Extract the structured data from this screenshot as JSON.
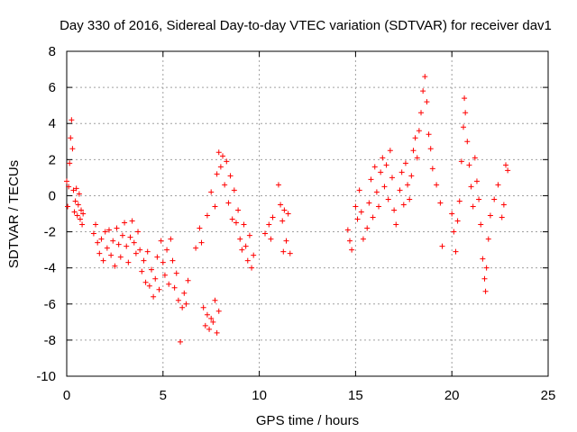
{
  "colors": {
    "series": "#ff0000",
    "grid": "#a0a0a0",
    "axis": "#000000",
    "background": "#ffffff"
  },
  "chart_data": {
    "type": "scatter",
    "title": "Day 330 of 2016, Sidereal Day-to-day VTEC variation (SDTVAR) for receiver dav1",
    "xlabel": "GPS time / hours",
    "ylabel": "SDTVAR / TECUs",
    "xlim": [
      0,
      25
    ],
    "ylim": [
      -10,
      8
    ],
    "xticks": [
      0,
      5,
      10,
      15,
      20,
      25
    ],
    "xtick_labels": [
      "0",
      "5",
      "10",
      "15",
      "20",
      "25"
    ],
    "yticks": [
      -10,
      -8,
      -6,
      -4,
      -2,
      0,
      2,
      4,
      6,
      8
    ],
    "ytick_labels": [
      "-10",
      "-8",
      "-6",
      "-4",
      "-2",
      "0",
      "2",
      "4",
      "6",
      "8"
    ],
    "grid": true,
    "marker": "+",
    "series": [
      {
        "name": "SDTVAR",
        "points": [
          [
            0.0,
            0.8
          ],
          [
            0.05,
            -0.6
          ],
          [
            0.1,
            0.5
          ],
          [
            0.15,
            1.8
          ],
          [
            0.2,
            3.2
          ],
          [
            0.25,
            4.2
          ],
          [
            0.3,
            2.6
          ],
          [
            0.35,
            0.3
          ],
          [
            0.4,
            -0.9
          ],
          [
            0.45,
            -0.3
          ],
          [
            0.5,
            0.4
          ],
          [
            0.55,
            -1.1
          ],
          [
            0.6,
            -0.5
          ],
          [
            0.65,
            0.1
          ],
          [
            0.7,
            -1.3
          ],
          [
            0.75,
            -0.8
          ],
          [
            0.8,
            -1.6
          ],
          [
            0.85,
            -1.0
          ],
          [
            1.4,
            -2.1
          ],
          [
            1.5,
            -1.6
          ],
          [
            1.6,
            -2.6
          ],
          [
            1.7,
            -3.2
          ],
          [
            1.8,
            -2.4
          ],
          [
            1.9,
            -3.6
          ],
          [
            2.0,
            -2.0
          ],
          [
            2.1,
            -2.9
          ],
          [
            2.2,
            -1.9
          ],
          [
            2.3,
            -3.3
          ],
          [
            2.4,
            -2.5
          ],
          [
            2.5,
            -3.9
          ],
          [
            2.6,
            -1.8
          ],
          [
            2.7,
            -2.7
          ],
          [
            2.8,
            -3.4
          ],
          [
            2.9,
            -2.2
          ],
          [
            3.0,
            -1.5
          ],
          [
            3.1,
            -2.8
          ],
          [
            3.2,
            -3.7
          ],
          [
            3.3,
            -2.3
          ],
          [
            3.4,
            -1.4
          ],
          [
            3.5,
            -2.6
          ],
          [
            3.6,
            -3.2
          ],
          [
            3.7,
            -2.0
          ],
          [
            3.8,
            -3.0
          ],
          [
            3.9,
            -4.2
          ],
          [
            4.0,
            -3.6
          ],
          [
            4.1,
            -4.8
          ],
          [
            4.2,
            -3.1
          ],
          [
            4.3,
            -5.0
          ],
          [
            4.4,
            -4.1
          ],
          [
            4.5,
            -5.6
          ],
          [
            4.6,
            -4.6
          ],
          [
            4.7,
            -3.4
          ],
          [
            4.8,
            -5.2
          ],
          [
            4.9,
            -2.5
          ],
          [
            5.0,
            -3.7
          ],
          [
            5.1,
            -4.4
          ],
          [
            5.2,
            -3.0
          ],
          [
            5.3,
            -4.9
          ],
          [
            5.4,
            -2.4
          ],
          [
            5.5,
            -3.6
          ],
          [
            5.6,
            -5.1
          ],
          [
            5.7,
            -4.3
          ],
          [
            5.8,
            -5.8
          ],
          [
            5.9,
            -8.1
          ],
          [
            6.0,
            -6.2
          ],
          [
            6.1,
            -5.4
          ],
          [
            6.2,
            -6.0
          ],
          [
            6.3,
            -4.7
          ],
          [
            7.1,
            -6.2
          ],
          [
            7.2,
            -7.2
          ],
          [
            7.3,
            -6.6
          ],
          [
            7.4,
            -7.4
          ],
          [
            7.5,
            -6.8
          ],
          [
            7.6,
            -7.0
          ],
          [
            7.7,
            -5.8
          ],
          [
            7.8,
            -7.6
          ],
          [
            7.9,
            -6.4
          ],
          [
            6.7,
            -2.9
          ],
          [
            6.9,
            -1.8
          ],
          [
            7.0,
            -2.6
          ],
          [
            7.3,
            -1.1
          ],
          [
            7.5,
            0.2
          ],
          [
            7.7,
            -0.6
          ],
          [
            7.8,
            1.2
          ],
          [
            7.9,
            2.4
          ],
          [
            8.0,
            1.6
          ],
          [
            8.1,
            2.2
          ],
          [
            8.2,
            0.6
          ],
          [
            8.3,
            1.9
          ],
          [
            8.4,
            -0.4
          ],
          [
            8.5,
            1.1
          ],
          [
            8.6,
            -1.3
          ],
          [
            8.7,
            0.3
          ],
          [
            8.8,
            -1.5
          ],
          [
            8.9,
            -0.8
          ],
          [
            9.0,
            -2.4
          ],
          [
            9.1,
            -3.0
          ],
          [
            9.2,
            -1.6
          ],
          [
            9.3,
            -2.8
          ],
          [
            9.4,
            -3.6
          ],
          [
            9.5,
            -2.2
          ],
          [
            9.6,
            -4.0
          ],
          [
            9.7,
            -3.3
          ],
          [
            10.3,
            -2.1
          ],
          [
            10.5,
            -1.6
          ],
          [
            10.6,
            -2.4
          ],
          [
            10.7,
            -1.2
          ],
          [
            11.0,
            0.6
          ],
          [
            11.1,
            -0.5
          ],
          [
            11.2,
            -1.4
          ],
          [
            11.25,
            -3.1
          ],
          [
            11.3,
            -0.8
          ],
          [
            11.4,
            -2.5
          ],
          [
            11.5,
            -1.0
          ],
          [
            11.6,
            -3.2
          ],
          [
            14.6,
            -1.9
          ],
          [
            14.7,
            -2.5
          ],
          [
            14.8,
            -3.0
          ],
          [
            15.0,
            -0.6
          ],
          [
            15.1,
            -1.3
          ],
          [
            15.2,
            0.3
          ],
          [
            15.3,
            -0.9
          ],
          [
            15.4,
            -2.4
          ],
          [
            15.6,
            -1.8
          ],
          [
            15.7,
            -0.4
          ],
          [
            15.8,
            0.9
          ],
          [
            15.9,
            -1.2
          ],
          [
            16.0,
            1.6
          ],
          [
            16.1,
            0.2
          ],
          [
            16.2,
            -0.6
          ],
          [
            16.3,
            1.3
          ],
          [
            16.4,
            2.1
          ],
          [
            16.5,
            0.5
          ],
          [
            16.6,
            1.7
          ],
          [
            16.7,
            -0.2
          ],
          [
            16.8,
            2.5
          ],
          [
            16.9,
            1.0
          ],
          [
            17.0,
            -0.8
          ],
          [
            17.1,
            -1.6
          ],
          [
            17.3,
            0.3
          ],
          [
            17.4,
            1.3
          ],
          [
            17.5,
            -0.5
          ],
          [
            17.6,
            1.8
          ],
          [
            17.7,
            0.6
          ],
          [
            17.8,
            -0.2
          ],
          [
            17.9,
            1.1
          ],
          [
            18.0,
            2.5
          ],
          [
            18.1,
            3.2
          ],
          [
            18.2,
            2.1
          ],
          [
            18.3,
            3.6
          ],
          [
            18.4,
            4.6
          ],
          [
            18.5,
            5.8
          ],
          [
            18.6,
            6.6
          ],
          [
            18.7,
            5.2
          ],
          [
            18.8,
            3.4
          ],
          [
            18.9,
            2.6
          ],
          [
            19.0,
            1.5
          ],
          [
            19.2,
            0.6
          ],
          [
            19.4,
            -0.4
          ],
          [
            19.5,
            -2.8
          ],
          [
            20.0,
            -1.0
          ],
          [
            20.1,
            -2.0
          ],
          [
            20.2,
            -3.1
          ],
          [
            20.3,
            -1.4
          ],
          [
            20.4,
            -0.3
          ],
          [
            20.5,
            1.9
          ],
          [
            20.6,
            3.8
          ],
          [
            20.65,
            5.4
          ],
          [
            20.7,
            4.6
          ],
          [
            20.8,
            3.0
          ],
          [
            20.9,
            1.7
          ],
          [
            21.0,
            0.5
          ],
          [
            21.1,
            -0.6
          ],
          [
            21.2,
            2.1
          ],
          [
            21.3,
            0.8
          ],
          [
            21.4,
            -0.2
          ],
          [
            21.5,
            -1.6
          ],
          [
            21.6,
            -3.5
          ],
          [
            21.7,
            -4.6
          ],
          [
            21.75,
            -5.3
          ],
          [
            21.8,
            -4.0
          ],
          [
            21.9,
            -2.4
          ],
          [
            22.0,
            -1.1
          ],
          [
            22.2,
            -0.2
          ],
          [
            22.4,
            0.6
          ],
          [
            22.6,
            -1.2
          ],
          [
            22.7,
            -0.5
          ],
          [
            22.8,
            1.7
          ],
          [
            22.9,
            1.4
          ]
        ]
      }
    ]
  }
}
